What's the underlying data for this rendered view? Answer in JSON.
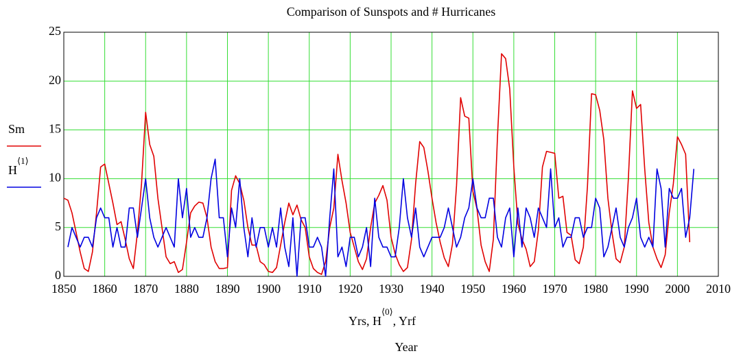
{
  "chart_data": {
    "type": "line",
    "title": "Comparison of Sunspots and # Hurricanes",
    "x_label_parts": [
      "Yrs, H",
      "⟨0⟩",
      ", Yrf"
    ],
    "x_caption": "Year",
    "xlim": [
      1850,
      2010
    ],
    "xticks": [
      1850,
      1860,
      1870,
      1880,
      1890,
      1900,
      1910,
      1920,
      1930,
      1940,
      1950,
      1960,
      1970,
      1980,
      1990,
      2000,
      2010
    ],
    "ylim": [
      0,
      25
    ],
    "yticks": [
      0,
      5,
      10,
      15,
      20,
      25
    ],
    "grid": true,
    "grid_color": "#33dd33",
    "series": [
      {
        "name": "Sm",
        "color": "#e00000",
        "x": [
          1850,
          1851,
          1852,
          1853,
          1854,
          1855,
          1856,
          1857,
          1858,
          1859,
          1860,
          1861,
          1862,
          1863,
          1864,
          1865,
          1866,
          1867,
          1868,
          1869,
          1870,
          1871,
          1872,
          1873,
          1874,
          1875,
          1876,
          1877,
          1878,
          1879,
          1880,
          1881,
          1882,
          1883,
          1884,
          1885,
          1886,
          1887,
          1888,
          1889,
          1890,
          1891,
          1892,
          1893,
          1894,
          1895,
          1896,
          1897,
          1898,
          1899,
          1900,
          1901,
          1902,
          1903,
          1904,
          1905,
          1906,
          1907,
          1908,
          1909,
          1910,
          1911,
          1912,
          1913,
          1914,
          1915,
          1916,
          1917,
          1918,
          1919,
          1920,
          1921,
          1922,
          1923,
          1924,
          1925,
          1926,
          1927,
          1928,
          1929,
          1930,
          1931,
          1932,
          1933,
          1934,
          1935,
          1936,
          1937,
          1938,
          1939,
          1940,
          1941,
          1942,
          1943,
          1944,
          1945,
          1946,
          1947,
          1948,
          1949,
          1950,
          1951,
          1952,
          1953,
          1954,
          1955,
          1956,
          1957,
          1958,
          1959,
          1960,
          1961,
          1962,
          1963,
          1964,
          1965,
          1966,
          1967,
          1968,
          1969,
          1970,
          1971,
          1972,
          1973,
          1974,
          1975,
          1976,
          1977,
          1978,
          1979,
          1980,
          1981,
          1982,
          1983,
          1984,
          1985,
          1986,
          1987,
          1988,
          1989,
          1990,
          1991,
          1992,
          1993,
          1994,
          1995,
          1996,
          1997,
          1998,
          1999,
          2000,
          2001,
          2002,
          2003
        ],
        "values": [
          8.0,
          7.8,
          6.5,
          4.5,
          2.5,
          0.8,
          0.5,
          2.5,
          6.5,
          11.2,
          11.5,
          9.5,
          7.5,
          5.3,
          5.6,
          3.8,
          1.8,
          0.8,
          4.5,
          9.5,
          16.8,
          13.5,
          12.3,
          8.0,
          5.0,
          2.0,
          1.3,
          1.5,
          0.4,
          0.7,
          3.5,
          6.5,
          7.2,
          7.6,
          7.5,
          6.0,
          3.0,
          1.5,
          0.8,
          0.8,
          0.9,
          8.8,
          10.3,
          9.5,
          7.8,
          5.0,
          3.2,
          3.2,
          1.5,
          1.2,
          0.5,
          0.4,
          0.9,
          3.2,
          5.5,
          7.5,
          6.3,
          7.3,
          5.8,
          5.0,
          2.0,
          0.8,
          0.4,
          0.2,
          1.5,
          5.0,
          7.0,
          12.5,
          9.8,
          7.5,
          4.5,
          3.0,
          1.5,
          0.7,
          1.8,
          5.0,
          7.5,
          8.3,
          9.3,
          7.8,
          4.0,
          2.3,
          1.2,
          0.5,
          0.9,
          3.8,
          9.5,
          13.8,
          13.2,
          10.8,
          8.0,
          5.5,
          3.5,
          1.9,
          1.0,
          3.3,
          9.3,
          18.3,
          16.4,
          16.2,
          8.7,
          6.9,
          3.2,
          1.5,
          0.5,
          3.8,
          14.2,
          22.8,
          22.3,
          19.2,
          11.2,
          5.4,
          3.8,
          2.8,
          1.0,
          1.5,
          4.7,
          11.2,
          12.8,
          12.7,
          12.6,
          8.0,
          8.2,
          4.5,
          4.2,
          1.7,
          1.3,
          3.0,
          9.2,
          18.7,
          18.6,
          17.0,
          14.0,
          8.0,
          4.5,
          1.8,
          1.4,
          3.0,
          10.0,
          19.0,
          17.2,
          17.6,
          11.0,
          5.5,
          3.0,
          1.8,
          0.9,
          2.2,
          6.5,
          9.5,
          14.3,
          13.5,
          12.5,
          3.5
        ]
      },
      {
        "name": "H",
        "name_superscript": "⟨1⟩",
        "color": "#0000e0",
        "x": [
          1851,
          1852,
          1853,
          1854,
          1855,
          1856,
          1857,
          1858,
          1859,
          1860,
          1861,
          1862,
          1863,
          1864,
          1865,
          1866,
          1867,
          1868,
          1869,
          1870,
          1871,
          1872,
          1873,
          1874,
          1875,
          1876,
          1877,
          1878,
          1879,
          1880,
          1881,
          1882,
          1883,
          1884,
          1885,
          1886,
          1887,
          1888,
          1889,
          1890,
          1891,
          1892,
          1893,
          1894,
          1895,
          1896,
          1897,
          1898,
          1899,
          1900,
          1901,
          1902,
          1903,
          1904,
          1905,
          1906,
          1907,
          1908,
          1909,
          1910,
          1911,
          1912,
          1913,
          1914,
          1915,
          1916,
          1917,
          1918,
          1919,
          1920,
          1921,
          1922,
          1923,
          1924,
          1925,
          1926,
          1927,
          1928,
          1929,
          1930,
          1931,
          1932,
          1933,
          1934,
          1935,
          1936,
          1937,
          1938,
          1939,
          1940,
          1941,
          1942,
          1943,
          1944,
          1945,
          1946,
          1947,
          1948,
          1949,
          1950,
          1951,
          1952,
          1953,
          1954,
          1955,
          1956,
          1957,
          1958,
          1959,
          1960,
          1961,
          1962,
          1963,
          1964,
          1965,
          1966,
          1967,
          1968,
          1969,
          1970,
          1971,
          1972,
          1973,
          1974,
          1975,
          1976,
          1977,
          1978,
          1979,
          1980,
          1981,
          1982,
          1983,
          1984,
          1985,
          1986,
          1987,
          1988,
          1989,
          1990,
          1991,
          1992,
          1993,
          1994,
          1995,
          1996,
          1997,
          1998,
          1999,
          2000,
          2001,
          2002,
          2003,
          2004
        ],
        "values": [
          3,
          5,
          4,
          3,
          4,
          4,
          3,
          6,
          7,
          6,
          6,
          3,
          5,
          3,
          3,
          7,
          7,
          4,
          7,
          10,
          6,
          4,
          3,
          4,
          5,
          4,
          3,
          10,
          6,
          9,
          4,
          5,
          4,
          4,
          6,
          10,
          12,
          6,
          6,
          2,
          7,
          5,
          10,
          5,
          2,
          6,
          3,
          5,
          5,
          3,
          5,
          3,
          7,
          3,
          1,
          6,
          0,
          6,
          6,
          3,
          3,
          4,
          3,
          0,
          6,
          11,
          2,
          3,
          1,
          4,
          4,
          2,
          3,
          5,
          1,
          8,
          4,
          3,
          3,
          2,
          2,
          5,
          10,
          6,
          4,
          7,
          3,
          2,
          3,
          4,
          4,
          4,
          5,
          7,
          5,
          3,
          4,
          6,
          7,
          10,
          7,
          6,
          6,
          8,
          8,
          4,
          3,
          6,
          7,
          2,
          7,
          3,
          7,
          6,
          4,
          7,
          6,
          5,
          11,
          5,
          6,
          3,
          4,
          4,
          6,
          6,
          4,
          5,
          5,
          8,
          7,
          2,
          3,
          5,
          7,
          4,
          3,
          5,
          6,
          8,
          4,
          3,
          4,
          3,
          11,
          9,
          3,
          9,
          8,
          8,
          9,
          4,
          6,
          11
        ]
      }
    ]
  }
}
